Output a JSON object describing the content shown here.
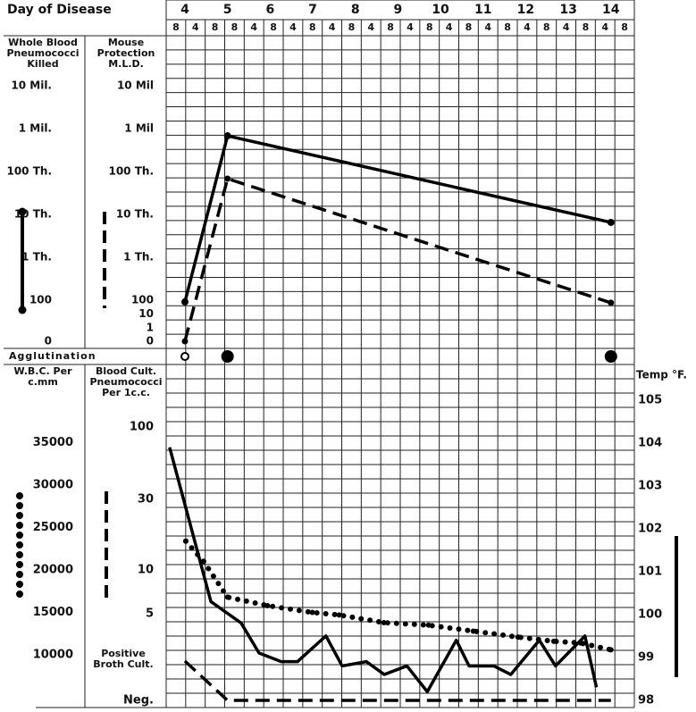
{
  "chart_data": [
    {
      "type": "line",
      "x_label": "Day of Disease",
      "xlim": [
        3.56,
        14.55
      ],
      "xticks": [
        4,
        5,
        6,
        7,
        8,
        9,
        10,
        11,
        12,
        13,
        14
      ],
      "hour_labels": [
        "8",
        "4",
        "8",
        "8",
        "4",
        "8",
        "4",
        "8",
        "4",
        "8",
        "4",
        "8",
        "4",
        "8",
        "4",
        "8",
        "4",
        "8",
        "4",
        "8",
        "4",
        "8",
        "4",
        "8"
      ],
      "y_log": true,
      "ylim": [
        0,
        100000000
      ],
      "yticks": [
        0,
        100,
        {
          "value": 1000,
          "label": "1 Th."
        },
        {
          "value": 10000,
          "label": "10 Th."
        },
        {
          "value": 100000,
          "label": "100 Th."
        },
        {
          "value": 1000000,
          "label": "1 Mil."
        },
        {
          "value": 10000000,
          "label": "10 Mil."
        }
      ],
      "y2ticks": [
        0,
        1,
        10,
        100,
        {
          "value": 1000,
          "label": "1 Th."
        },
        {
          "value": 10000,
          "label": "10 Th."
        },
        {
          "value": 100000,
          "label": "100 Th."
        },
        {
          "value": 1000000,
          "label": "1 Mil"
        },
        {
          "value": 10000000,
          "label": "10 Mil"
        }
      ],
      "series": [
        {
          "name": "Whole Blood Pneumococci Killed",
          "color": "#000000",
          "style": "solid",
          "x": [
            4,
            5,
            14
          ],
          "values": [
            75,
            680000,
            6500
          ]
        },
        {
          "name": "Mouse Protection M.L.D.",
          "color": "#000000",
          "style": "dashed",
          "axis": "y2",
          "x": [
            4,
            5,
            14
          ],
          "values": [
            0,
            68000,
            65
          ]
        }
      ]
    },
    {
      "type": "events",
      "label": "Agglutination",
      "x": [
        4,
        5,
        14
      ],
      "filled": [
        false,
        true,
        true
      ]
    },
    {
      "type": "line",
      "xlim": [
        3.56,
        14.55
      ],
      "ylim": [
        3800,
        44200
      ],
      "yticks": [
        10000,
        15000,
        20000,
        25000,
        30000,
        35000
      ],
      "y2lim": [
        97.83,
        105.83
      ],
      "y2ticks": [
        98,
        99,
        100,
        101,
        102,
        103,
        104,
        105
      ],
      "y2_label": "Temp °F.",
      "culture_ticks": [
        {
          "value": 0,
          "label": "Neg."
        },
        {
          "value": 1,
          "label": "Positive Broth Cult."
        },
        5,
        10,
        30,
        100
      ],
      "series": [
        {
          "name": "W.B.C. Per c.mm",
          "color": "#000000",
          "style": "dotted",
          "x": [
            4.02,
            4.44,
            5.0,
            5.94,
            6.99,
            7.62,
            8.67,
            9.72,
            10.77,
            11.82,
            12.66,
            13.29,
            14.0
          ],
          "values": [
            23400,
            21000,
            16800,
            15800,
            15000,
            14700,
            13800,
            13500,
            12800,
            12100,
            11600,
            11400,
            10600
          ]
        },
        {
          "name": "Blood Cult. Pneumococci Per 1c.c.",
          "color": "#000000",
          "style": "dashed",
          "axis": "culture",
          "x": [
            4,
            5,
            14
          ],
          "values": [
            1,
            0,
            0
          ]
        },
        {
          "name": "Temp °F.",
          "color": "#000000",
          "style": "solid",
          "axis": "y2",
          "x": [
            3.64,
            4.61,
            5.32,
            5.74,
            6.26,
            6.64,
            7.31,
            7.69,
            8.26,
            8.68,
            9.21,
            9.69,
            10.37,
            10.67,
            11.25,
            11.65,
            12.32,
            12.7,
            13.39,
            13.66
          ],
          "values": [
            103.9,
            100.3,
            99.8,
            99.1,
            98.9,
            98.9,
            99.5,
            98.8,
            98.9,
            98.6,
            98.8,
            98.2,
            99.4,
            98.8,
            98.8,
            98.6,
            99.4,
            98.8,
            99.5,
            98.3
          ]
        }
      ]
    }
  ]
}
